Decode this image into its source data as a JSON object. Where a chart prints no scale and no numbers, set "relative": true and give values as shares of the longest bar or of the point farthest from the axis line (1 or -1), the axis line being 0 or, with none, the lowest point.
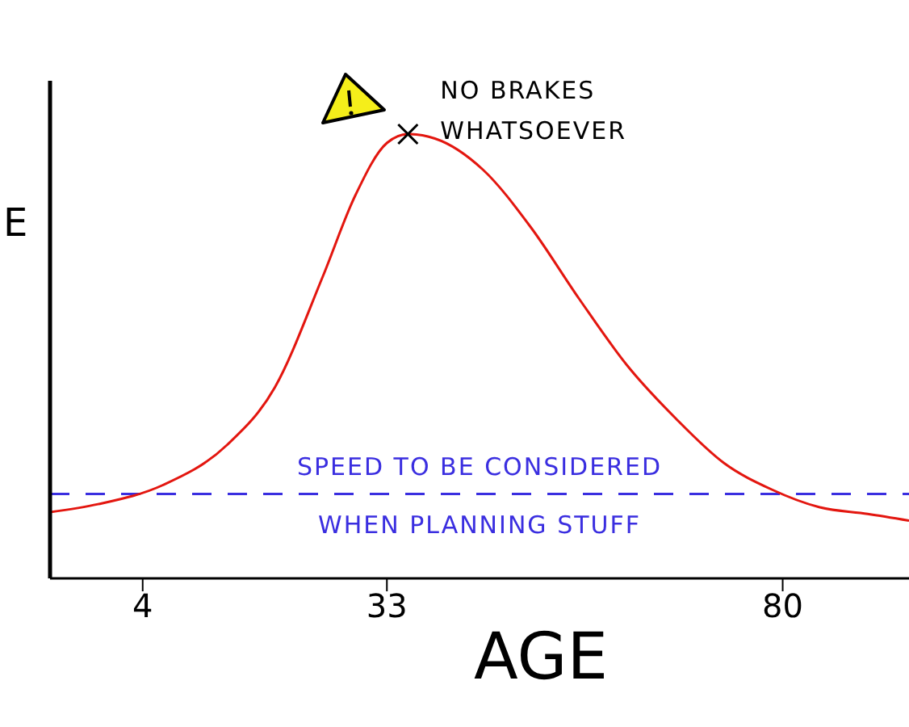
{
  "chart_data": {
    "type": "line",
    "ylabel": "E",
    "xlabel": "AGE",
    "relative": true,
    "xlim": [
      -7,
      95
    ],
    "xticks": [
      4,
      33,
      80
    ],
    "grid": false,
    "legend": false,
    "marker": "none",
    "line_style": "solid",
    "series": [
      {
        "color": "#e3160f",
        "x": [
          -7,
          -1.3,
          6.4,
          14,
          19.7,
          25.4,
          29.2,
          33,
          35.5,
          38.7,
          44.4,
          50.1,
          55.8,
          61.5,
          67.3,
          73,
          78.7,
          84.4,
          90.1,
          95
        ],
        "values": [
          0.149,
          0.167,
          0.21,
          0.3,
          0.43,
          0.68,
          0.86,
          0.98,
          1,
          0.99,
          0.92,
          0.79,
          0.63,
          0.48,
          0.36,
          0.26,
          0.2,
          0.16,
          0.145,
          0.13
        ]
      }
    ],
    "ref_lines": [
      {
        "axis": "y",
        "value": 0.19,
        "label": "SPEED TO BE CONSIDERED WHEN PLANNING STUFF",
        "color": "#3a2ee0",
        "line_style": "dashed"
      }
    ],
    "annotations": [
      {
        "text": "NO BRAKES WHATSOEVER",
        "x": 35.5,
        "y": 1
      }
    ]
  }
}
